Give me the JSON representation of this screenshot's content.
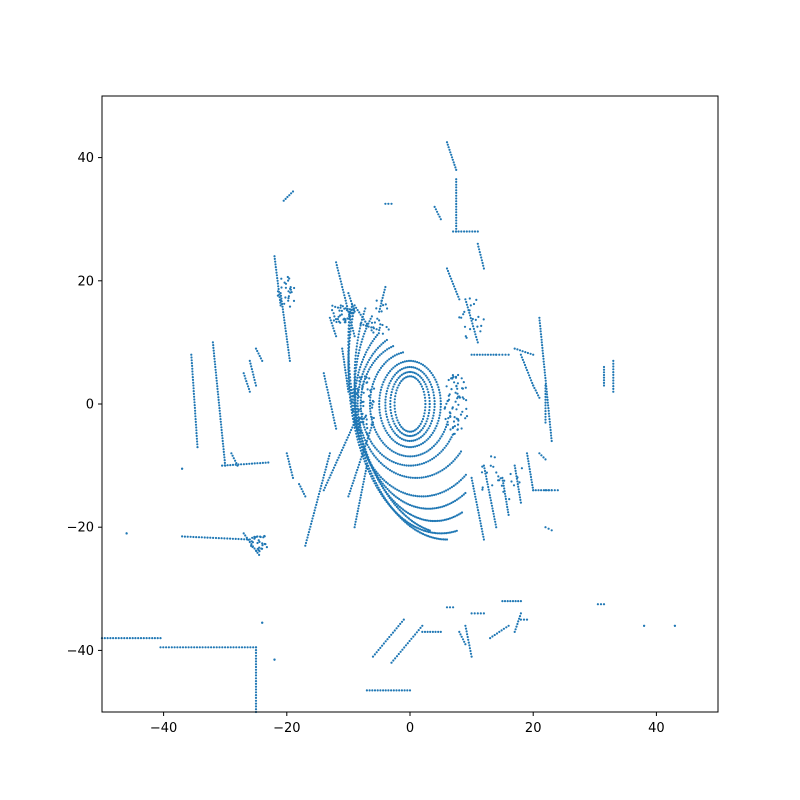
{
  "chart_data": {
    "type": "scatter",
    "title": "",
    "xlabel": "",
    "ylabel": "",
    "xlim": [
      -50,
      50
    ],
    "ylim": [
      -50,
      50
    ],
    "grid": false,
    "marker_color": "#1f77b4",
    "x_ticks": [
      -40,
      -20,
      0,
      20,
      40
    ],
    "y_ticks": [
      -40,
      -20,
      0,
      20,
      40
    ],
    "x_tick_labels": [
      "−40",
      "−20",
      "0",
      "20",
      "40"
    ],
    "y_tick_labels": [
      "−40",
      "−20",
      "0",
      "20",
      "40"
    ],
    "segments": [
      [
        -50,
        -38,
        -40.5,
        -38
      ],
      [
        -40.5,
        -39.5,
        -25,
        -39.5
      ],
      [
        -25,
        -39.5,
        -25,
        -50
      ],
      [
        -7,
        -46.5,
        0,
        -46.5
      ],
      [
        -37,
        -21.5,
        -26,
        -22
      ],
      [
        -27,
        -21,
        -24.5,
        -24.5
      ],
      [
        -30.5,
        -10,
        -23,
        -9.5
      ],
      [
        -35.5,
        8,
        -34.5,
        -7
      ],
      [
        -32,
        10,
        -30,
        -10
      ],
      [
        -22,
        24,
        -21,
        16
      ],
      [
        -21,
        18,
        -19.5,
        7
      ],
      [
        -19,
        34.5,
        -20.5,
        33
      ],
      [
        -12,
        23,
        -9,
        11
      ],
      [
        -4,
        32.5,
        -3,
        32.5
      ],
      [
        7,
        28,
        11,
        28
      ],
      [
        6,
        42.5,
        7.5,
        38
      ],
      [
        7.5,
        36.5,
        7.5,
        28
      ],
      [
        -4,
        19,
        -5,
        15
      ],
      [
        -17,
        -23,
        -13,
        -8
      ],
      [
        -14,
        -14,
        -9,
        -3
      ],
      [
        -10,
        -15,
        -6,
        -3
      ],
      [
        -9,
        -20,
        -7,
        -10
      ],
      [
        21,
        14,
        23,
        -6
      ],
      [
        22,
        -20,
        23,
        -20.5
      ],
      [
        30.5,
        -32.5,
        31.5,
        -32.5
      ],
      [
        33,
        7,
        33,
        2
      ],
      [
        31.5,
        6,
        31.5,
        3
      ],
      [
        -6,
        -41,
        -1,
        -35
      ],
      [
        -3,
        -42,
        2,
        -36
      ],
      [
        2,
        -37,
        5,
        -37
      ],
      [
        6,
        -33,
        7,
        -33
      ],
      [
        8,
        -37,
        9,
        -39
      ],
      [
        9,
        -36,
        10,
        -41
      ],
      [
        10,
        -34,
        12,
        -34
      ],
      [
        13,
        -38,
        16,
        -36
      ],
      [
        15,
        -32,
        18,
        -32
      ],
      [
        17,
        -37,
        18,
        -34
      ],
      [
        18,
        -35,
        19,
        -35
      ],
      [
        38,
        -36,
        38,
        -36
      ],
      [
        43,
        -36,
        43,
        -36
      ],
      [
        -24,
        -35.5,
        -24,
        -35.5
      ],
      [
        -22,
        -41.5,
        -22,
        -41.5
      ],
      [
        -46,
        -21,
        -46,
        -21
      ],
      [
        -37,
        -10.5,
        -37,
        -10.5
      ],
      [
        12,
        -22,
        10,
        -12
      ],
      [
        14,
        -20,
        12,
        -10
      ],
      [
        16,
        -18,
        15,
        -12
      ],
      [
        18,
        -16,
        17,
        -10
      ],
      [
        20,
        -14,
        19,
        -8
      ],
      [
        20,
        -14,
        23,
        -14
      ],
      [
        22,
        -14,
        24,
        -14
      ],
      [
        10,
        8,
        14,
        8
      ],
      [
        14,
        8,
        16,
        8
      ],
      [
        17,
        9,
        20,
        8
      ],
      [
        18,
        8,
        20,
        3
      ],
      [
        11,
        26,
        12,
        22
      ],
      [
        4,
        32,
        5,
        30
      ],
      [
        6,
        22,
        8,
        17
      ],
      [
        9,
        17,
        11,
        10
      ],
      [
        -9,
        16,
        -7,
        13
      ],
      [
        -8,
        13,
        -5,
        12
      ],
      [
        -10,
        18,
        -9,
        15
      ],
      [
        -13,
        14,
        -12,
        11
      ],
      [
        -11,
        9,
        -10,
        2
      ],
      [
        -14,
        5,
        -12,
        -4
      ],
      [
        -26,
        7,
        -25,
        3
      ],
      [
        -27,
        5,
        -26,
        2
      ],
      [
        -25,
        9,
        -24,
        7
      ],
      [
        -29,
        -8,
        -28,
        -10
      ],
      [
        -18,
        -13,
        -17,
        -15
      ],
      [
        -20,
        -8,
        -19,
        -12
      ],
      [
        22,
        3,
        22,
        -3
      ],
      [
        20,
        3,
        21,
        1
      ],
      [
        21,
        -8,
        22,
        -9
      ]
    ],
    "rings": [
      {
        "cx": 0,
        "cy": 0,
        "rx": 2.5,
        "ry": 4.5,
        "a0": 0,
        "a1": 360
      },
      {
        "cx": 0,
        "cy": 0,
        "rx": 3.2,
        "ry": 5.2,
        "a0": 0,
        "a1": 360
      },
      {
        "cx": 0,
        "cy": 0,
        "rx": 4,
        "ry": 6,
        "a0": 0,
        "a1": 360
      },
      {
        "cx": 0,
        "cy": 0,
        "rx": 5,
        "ry": 7,
        "a0": 0,
        "a1": 360
      },
      {
        "cx": 0,
        "cy": 0,
        "rx": 6.5,
        "ry": 8.5,
        "a0": 100,
        "a1": 340
      },
      {
        "cx": 0,
        "cy": 0,
        "rx": 8,
        "ry": 10,
        "a0": 110,
        "a1": 330
      },
      {
        "cx": 1,
        "cy": 0,
        "rx": 9.5,
        "ry": 12,
        "a0": 120,
        "a1": 320
      },
      {
        "cx": 2,
        "cy": 0,
        "rx": 11,
        "ry": 15,
        "a0": 130,
        "a1": 310
      },
      {
        "cx": 3,
        "cy": 2,
        "rx": 12,
        "ry": 19,
        "a0": 140,
        "a1": 300
      },
      {
        "cx": 4,
        "cy": 4,
        "rx": 13,
        "ry": 23,
        "a0": 150,
        "a1": 290
      },
      {
        "cx": 5,
        "cy": 6,
        "rx": 15,
        "ry": 27,
        "a0": 160,
        "a1": 280
      },
      {
        "cx": 6,
        "cy": 8,
        "rx": 16,
        "ry": 30,
        "a0": 165,
        "a1": 270
      },
      {
        "cx": 6,
        "cy": 10,
        "rx": 16,
        "ry": 31,
        "a0": 170,
        "a1": 260
      }
    ],
    "clusters": [
      {
        "cx": -7.5,
        "cy": 0,
        "rx": 2,
        "ry": 5,
        "n": 70
      },
      {
        "cx": 7.5,
        "cy": 0,
        "rx": 2,
        "ry": 5,
        "n": 70
      },
      {
        "cx": -11,
        "cy": 15,
        "rx": 2,
        "ry": 2,
        "n": 40
      },
      {
        "cx": -20,
        "cy": 18,
        "rx": 1.5,
        "ry": 3,
        "n": 25
      },
      {
        "cx": -24.5,
        "cy": -22.5,
        "rx": 1.5,
        "ry": 1.5,
        "n": 30
      },
      {
        "cx": 15,
        "cy": -12,
        "rx": 4,
        "ry": 4,
        "n": 25
      },
      {
        "cx": -5,
        "cy": 14,
        "rx": 2,
        "ry": 3,
        "n": 20
      },
      {
        "cx": 10,
        "cy": 14,
        "rx": 2,
        "ry": 4,
        "n": 20
      }
    ]
  }
}
